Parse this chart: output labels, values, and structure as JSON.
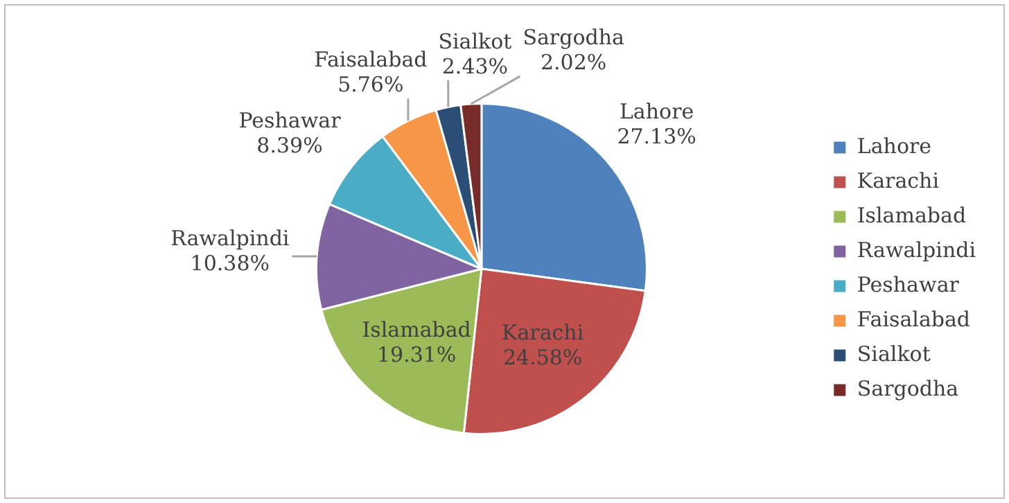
{
  "chart_data": {
    "type": "pie",
    "categories": [
      "Lahore",
      "Karachi",
      "Islamabad",
      "Rawalpindi",
      "Peshawar",
      "Faisalabad",
      "Sialkot",
      "Sargodha"
    ],
    "values": [
      27.13,
      24.58,
      19.31,
      10.38,
      8.39,
      5.76,
      2.43,
      2.02
    ],
    "value_labels": [
      "27.13%",
      "24.58%",
      "19.31%",
      "10.38%",
      "8.39%",
      "5.76%",
      "2.43%",
      "2.02%"
    ],
    "colors": [
      "#4f81bd",
      "#c0504d",
      "#9bbb59",
      "#8064a2",
      "#4bacc6",
      "#f79646",
      "#2c4d75",
      "#772c2a"
    ],
    "legend": "right"
  }
}
